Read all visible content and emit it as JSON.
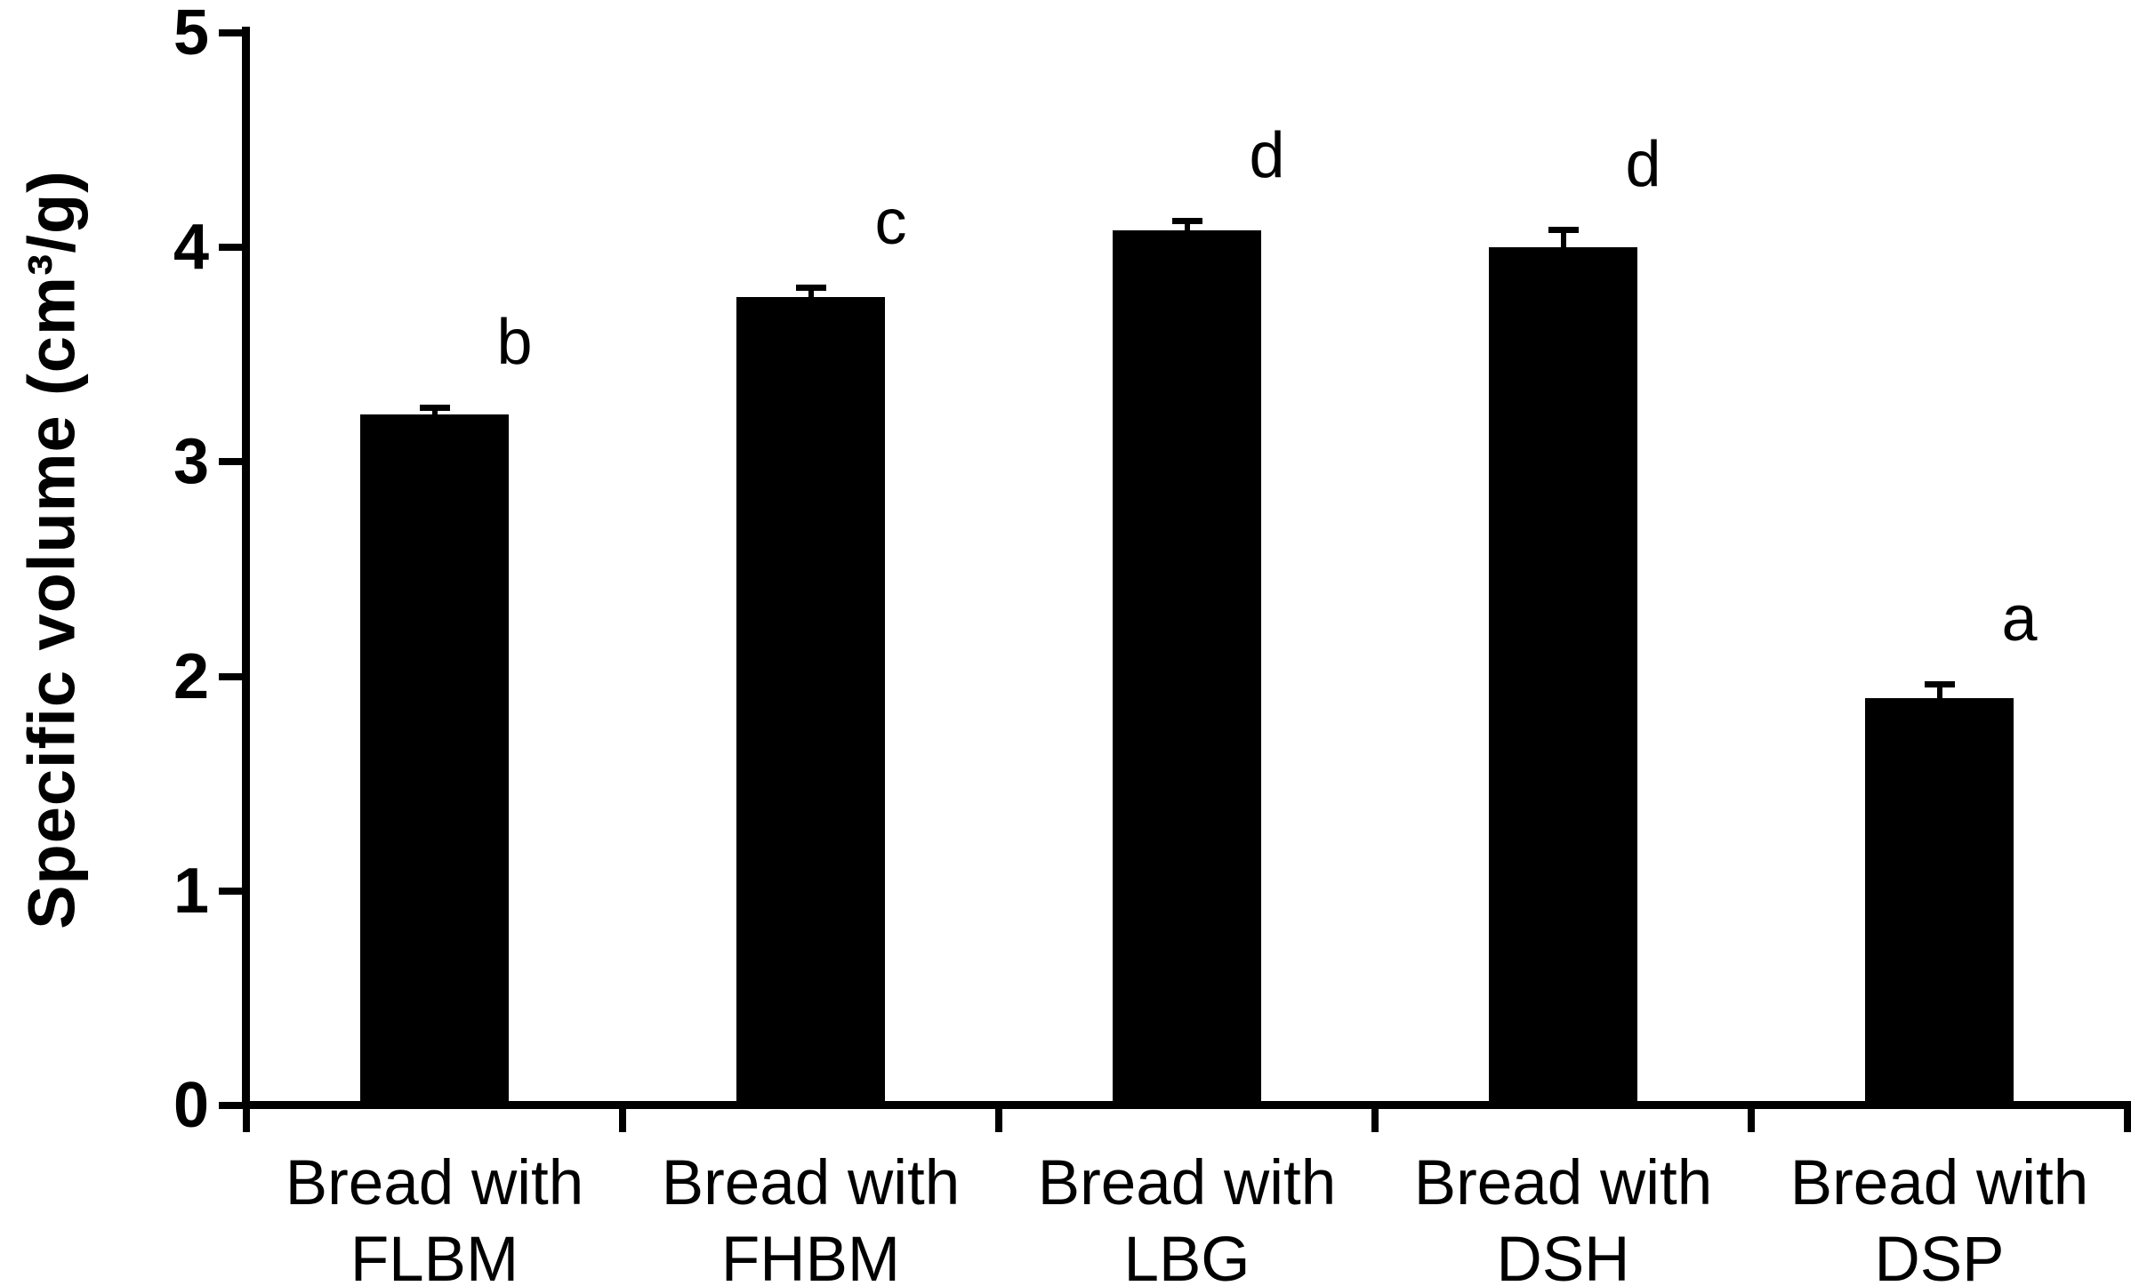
{
  "figure": {
    "background": "#ffffff",
    "text_color": "#000000"
  },
  "chart_data": {
    "type": "bar",
    "title": "",
    "xlabel": "",
    "ylabel": "Specific volume (cm³/g)",
    "ylim": [
      0,
      5
    ],
    "yticks": [
      0,
      1,
      2,
      3,
      4,
      5
    ],
    "grid": false,
    "legend": "none",
    "bar_color": "#000000",
    "axis_color": "#000000",
    "categories": [
      "Bread with FLBM",
      "Bread with FHBM",
      "Bread with LBG",
      "Bread with DSH",
      "Bread with DSP"
    ],
    "category_labels_two_line": [
      [
        "Bread with",
        "FLBM"
      ],
      [
        "Bread with",
        "FHBM"
      ],
      [
        "Bread with",
        "LBG"
      ],
      [
        "Bread with",
        "DSH"
      ],
      [
        "Bread with",
        "DSP"
      ]
    ],
    "series": [
      {
        "name": "Specific volume (cm³/g)",
        "values": [
          3.22,
          3.77,
          4.08,
          4.0,
          1.9
        ],
        "errors_plus": [
          0.03,
          0.04,
          0.04,
          0.08,
          0.06
        ],
        "significance_letters": [
          "b",
          "c",
          "d",
          "d",
          "a"
        ]
      }
    ]
  }
}
